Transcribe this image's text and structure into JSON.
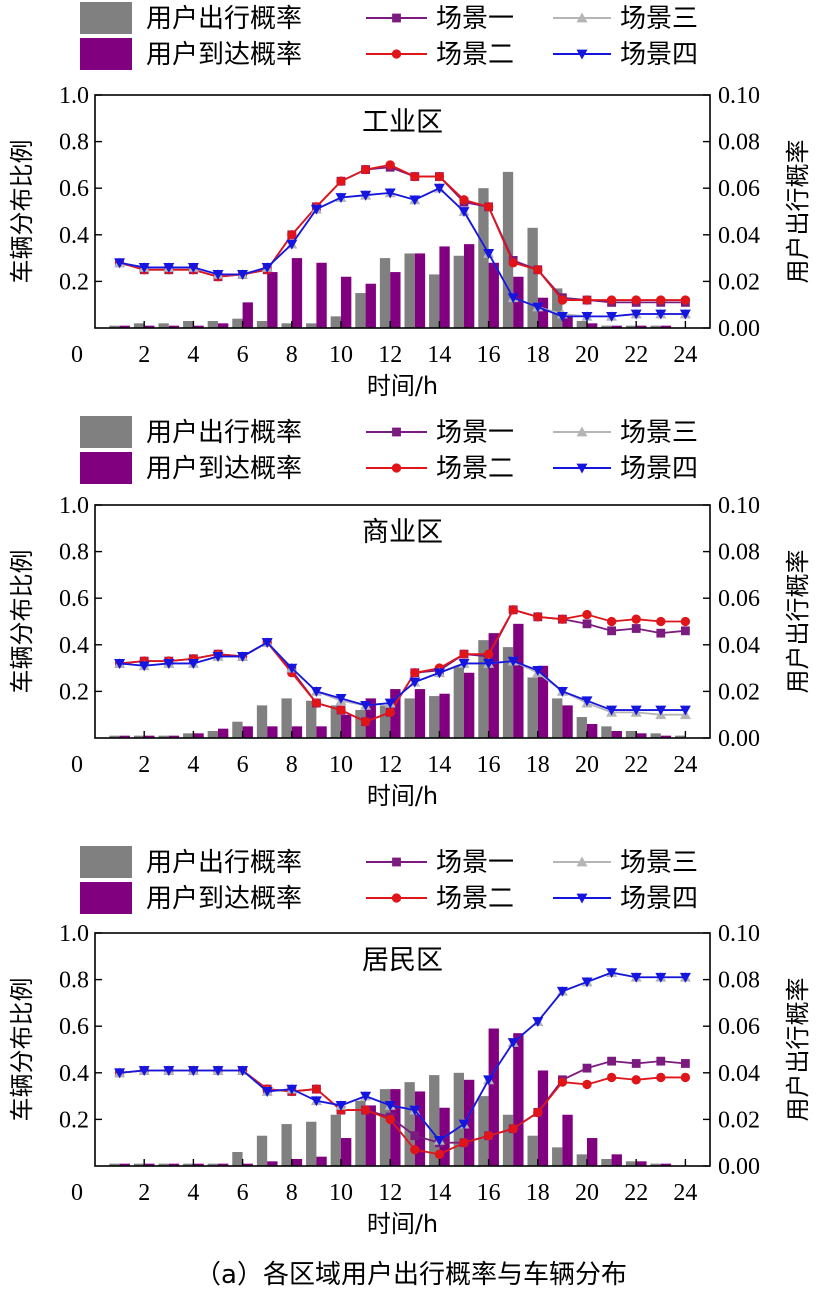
{
  "figure": {
    "caption": "（a）各区域用户出行概率与车辆分布"
  },
  "legend": {
    "items": [
      {
        "key": "depart",
        "label": "用户出行概率",
        "kind": "bar",
        "color": "#808080"
      },
      {
        "key": "s1",
        "label": "场景一",
        "kind": "line",
        "marker": "square",
        "color": "#7b1a7f"
      },
      {
        "key": "s3",
        "label": "场景三",
        "kind": "line",
        "marker": "triangle-up",
        "color": "#b5b5b5"
      },
      {
        "key": "arrive",
        "label": "用户到达概率",
        "kind": "bar",
        "color": "#800080"
      },
      {
        "key": "s2",
        "label": "场景二",
        "kind": "line",
        "marker": "circle",
        "color": "#e0151a"
      },
      {
        "key": "s4",
        "label": "场景四",
        "kind": "line",
        "marker": "triangle-down",
        "color": "#1515e0"
      }
    ]
  },
  "chart_data": [
    {
      "type": "bar",
      "title": "工业区",
      "xlabel": "时间/h",
      "ylabel_left": "车辆分布比例",
      "ylabel_right": "用户出行概率",
      "x": [
        1,
        2,
        3,
        4,
        5,
        6,
        7,
        8,
        9,
        10,
        11,
        12,
        13,
        14,
        15,
        16,
        17,
        18,
        19,
        20,
        21,
        22,
        23,
        24
      ],
      "xticks": [
        2,
        4,
        6,
        8,
        10,
        12,
        14,
        16,
        18,
        20,
        22,
        24
      ],
      "xtick_labels": [
        "2",
        "4",
        "6",
        "8",
        "10",
        "12",
        "14",
        "16",
        "18",
        "20",
        "22",
        "24"
      ],
      "x_origin_label": "0",
      "ylim_left": [
        0,
        1.0
      ],
      "ylim_right": [
        0,
        0.1
      ],
      "yticks_left": [
        "0.2",
        "0.4",
        "0.6",
        "0.8",
        "1.0"
      ],
      "yticks_right": [
        "0.00",
        "0.02",
        "0.04",
        "0.06",
        "0.08",
        "0.10"
      ],
      "series": [
        {
          "key": "depart",
          "type": "bar",
          "axis": "right",
          "values": [
            0.001,
            0.002,
            0.002,
            0.003,
            0.003,
            0.004,
            0.003,
            0.002,
            0.002,
            0.005,
            0.015,
            0.03,
            0.032,
            0.023,
            0.031,
            0.06,
            0.067,
            0.043,
            0.017,
            0.003,
            0.001,
            0.001,
            0.001,
            0.0
          ]
        },
        {
          "key": "arrive",
          "type": "bar",
          "axis": "right",
          "values": [
            0.001,
            0.001,
            0.001,
            0.001,
            0.002,
            0.011,
            0.024,
            0.03,
            0.028,
            0.022,
            0.019,
            0.024,
            0.032,
            0.035,
            0.036,
            0.028,
            0.022,
            0.013,
            0.005,
            0.002,
            0.001,
            0.001,
            0.001,
            0.0
          ]
        },
        {
          "key": "s1",
          "type": "line",
          "axis": "left",
          "values": [
            0.28,
            0.25,
            0.25,
            0.25,
            0.22,
            0.23,
            0.25,
            0.4,
            0.52,
            0.63,
            0.68,
            0.69,
            0.65,
            0.65,
            0.54,
            0.52,
            0.29,
            0.25,
            0.13,
            0.12,
            0.11,
            0.11,
            0.11,
            0.11
          ]
        },
        {
          "key": "s2",
          "type": "line",
          "axis": "left",
          "values": [
            0.28,
            0.25,
            0.25,
            0.25,
            0.22,
            0.23,
            0.25,
            0.4,
            0.52,
            0.63,
            0.68,
            0.7,
            0.65,
            0.65,
            0.55,
            0.52,
            0.28,
            0.25,
            0.12,
            0.12,
            0.12,
            0.12,
            0.12,
            0.12
          ]
        },
        {
          "key": "s3",
          "type": "line",
          "axis": "left",
          "values": [
            0.28,
            0.26,
            0.26,
            0.26,
            0.23,
            0.23,
            0.26,
            0.36,
            0.51,
            0.56,
            0.57,
            0.58,
            0.55,
            0.6,
            0.5,
            0.32,
            0.13,
            0.09,
            0.06,
            0.05,
            0.05,
            0.06,
            0.06,
            0.06
          ]
        },
        {
          "key": "s4",
          "type": "line",
          "axis": "left",
          "values": [
            0.28,
            0.26,
            0.26,
            0.26,
            0.23,
            0.23,
            0.26,
            0.36,
            0.51,
            0.56,
            0.57,
            0.58,
            0.55,
            0.6,
            0.5,
            0.32,
            0.13,
            0.09,
            0.05,
            0.05,
            0.05,
            0.06,
            0.06,
            0.06
          ]
        }
      ]
    },
    {
      "type": "bar",
      "title": "商业区",
      "xlabel": "时间/h",
      "ylabel_left": "车辆分布比例",
      "ylabel_right": "用户出行概率",
      "x": [
        1,
        2,
        3,
        4,
        5,
        6,
        7,
        8,
        9,
        10,
        11,
        12,
        13,
        14,
        15,
        16,
        17,
        18,
        19,
        20,
        21,
        22,
        23,
        24
      ],
      "xticks": [
        2,
        4,
        6,
        8,
        10,
        12,
        14,
        16,
        18,
        20,
        22,
        24
      ],
      "xtick_labels": [
        "2",
        "4",
        "6",
        "8",
        "10",
        "12",
        "14",
        "16",
        "18",
        "20",
        "22",
        "24"
      ],
      "x_origin_label": "0",
      "ylim_left": [
        0,
        1.0
      ],
      "ylim_right": [
        0,
        0.1
      ],
      "yticks_left": [
        "0.2",
        "0.4",
        "0.6",
        "0.8",
        "1.0"
      ],
      "yticks_right": [
        "0.00",
        "0.02",
        "0.04",
        "0.06",
        "0.08",
        "0.10"
      ],
      "series": [
        {
          "key": "depart",
          "type": "bar",
          "axis": "right",
          "values": [
            0.001,
            0.001,
            0.001,
            0.002,
            0.003,
            0.007,
            0.014,
            0.017,
            0.016,
            0.014,
            0.012,
            0.014,
            0.017,
            0.018,
            0.031,
            0.042,
            0.039,
            0.026,
            0.017,
            0.009,
            0.005,
            0.003,
            0.002,
            0.001
          ]
        },
        {
          "key": "arrive",
          "type": "bar",
          "axis": "right",
          "values": [
            0.001,
            0.001,
            0.001,
            0.002,
            0.004,
            0.005,
            0.005,
            0.005,
            0.005,
            0.01,
            0.017,
            0.021,
            0.021,
            0.019,
            0.028,
            0.045,
            0.049,
            0.031,
            0.014,
            0.006,
            0.003,
            0.002,
            0.001,
            0.0
          ]
        },
        {
          "key": "s1",
          "type": "line",
          "axis": "left",
          "values": [
            0.32,
            0.33,
            0.33,
            0.34,
            0.36,
            0.35,
            0.41,
            0.29,
            0.15,
            0.12,
            0.07,
            0.11,
            0.28,
            0.29,
            0.36,
            0.35,
            0.55,
            0.52,
            0.51,
            0.49,
            0.46,
            0.47,
            0.45,
            0.46
          ]
        },
        {
          "key": "s2",
          "type": "line",
          "axis": "left",
          "values": [
            0.32,
            0.33,
            0.33,
            0.34,
            0.36,
            0.35,
            0.41,
            0.28,
            0.15,
            0.12,
            0.07,
            0.11,
            0.28,
            0.3,
            0.36,
            0.36,
            0.55,
            0.52,
            0.51,
            0.53,
            0.5,
            0.51,
            0.5,
            0.5
          ]
        },
        {
          "key": "s3",
          "type": "line",
          "axis": "left",
          "values": [
            0.32,
            0.31,
            0.32,
            0.32,
            0.35,
            0.35,
            0.41,
            0.3,
            0.2,
            0.16,
            0.14,
            0.15,
            0.24,
            0.28,
            0.32,
            0.32,
            0.33,
            0.28,
            0.2,
            0.15,
            0.11,
            0.11,
            0.1,
            0.1
          ]
        },
        {
          "key": "s4",
          "type": "line",
          "axis": "left",
          "values": [
            0.32,
            0.31,
            0.32,
            0.32,
            0.35,
            0.35,
            0.41,
            0.3,
            0.2,
            0.17,
            0.14,
            0.15,
            0.24,
            0.28,
            0.32,
            0.32,
            0.33,
            0.29,
            0.2,
            0.16,
            0.12,
            0.12,
            0.12,
            0.12
          ]
        }
      ]
    },
    {
      "type": "bar",
      "title": "居民区",
      "xlabel": "时间/h",
      "ylabel_left": "车辆分布比例",
      "ylabel_right": "用户出行概率",
      "x": [
        1,
        2,
        3,
        4,
        5,
        6,
        7,
        8,
        9,
        10,
        11,
        12,
        13,
        14,
        15,
        16,
        17,
        18,
        19,
        20,
        21,
        22,
        23,
        24
      ],
      "xticks": [
        2,
        4,
        6,
        8,
        10,
        12,
        14,
        16,
        18,
        20,
        22,
        24
      ],
      "xtick_labels": [
        "2",
        "4",
        "6",
        "8",
        "10",
        "12",
        "14",
        "16",
        "18",
        "20",
        "22",
        "24"
      ],
      "x_origin_label": "0",
      "ylim_left": [
        0,
        1.0
      ],
      "ylim_right": [
        0,
        0.1
      ],
      "yticks_left": [
        "0.2",
        "0.4",
        "0.6",
        "0.8",
        "1.0"
      ],
      "yticks_right": [
        "0.00",
        "0.02",
        "0.04",
        "0.06",
        "0.08",
        "0.10"
      ],
      "series": [
        {
          "key": "depart",
          "type": "bar",
          "axis": "right",
          "values": [
            0.001,
            0.001,
            0.001,
            0.001,
            0.001,
            0.006,
            0.013,
            0.018,
            0.019,
            0.022,
            0.028,
            0.033,
            0.036,
            0.039,
            0.04,
            0.03,
            0.022,
            0.013,
            0.008,
            0.005,
            0.003,
            0.002,
            0.001,
            0.0
          ]
        },
        {
          "key": "arrive",
          "type": "bar",
          "axis": "right",
          "values": [
            0.001,
            0.001,
            0.001,
            0.001,
            0.001,
            0.001,
            0.002,
            0.003,
            0.004,
            0.012,
            0.026,
            0.033,
            0.032,
            0.025,
            0.037,
            0.059,
            0.057,
            0.041,
            0.022,
            0.012,
            0.005,
            0.002,
            0.001,
            0.0
          ]
        },
        {
          "key": "s1",
          "type": "line",
          "axis": "left",
          "values": [
            0.4,
            0.41,
            0.41,
            0.41,
            0.41,
            0.41,
            0.33,
            0.32,
            0.33,
            0.24,
            0.24,
            0.21,
            0.13,
            0.1,
            0.1,
            0.13,
            0.16,
            0.23,
            0.37,
            0.42,
            0.45,
            0.44,
            0.45,
            0.44
          ]
        },
        {
          "key": "s2",
          "type": "line",
          "axis": "left",
          "values": [
            0.4,
            0.41,
            0.41,
            0.41,
            0.41,
            0.41,
            0.33,
            0.32,
            0.33,
            0.24,
            0.24,
            0.2,
            0.07,
            0.05,
            0.1,
            0.13,
            0.16,
            0.23,
            0.36,
            0.35,
            0.38,
            0.37,
            0.38,
            0.38
          ]
        },
        {
          "key": "s3",
          "type": "line",
          "axis": "left",
          "values": [
            0.4,
            0.41,
            0.41,
            0.41,
            0.41,
            0.41,
            0.32,
            0.33,
            0.28,
            0.26,
            0.3,
            0.26,
            0.24,
            0.11,
            0.18,
            0.37,
            0.53,
            0.62,
            0.75,
            0.79,
            0.83,
            0.81,
            0.81,
            0.81
          ]
        },
        {
          "key": "s4",
          "type": "line",
          "axis": "left",
          "values": [
            0.4,
            0.41,
            0.41,
            0.41,
            0.41,
            0.41,
            0.32,
            0.33,
            0.28,
            0.26,
            0.3,
            0.26,
            0.24,
            0.11,
            0.18,
            0.37,
            0.53,
            0.62,
            0.75,
            0.79,
            0.83,
            0.81,
            0.81,
            0.81
          ]
        }
      ]
    }
  ]
}
